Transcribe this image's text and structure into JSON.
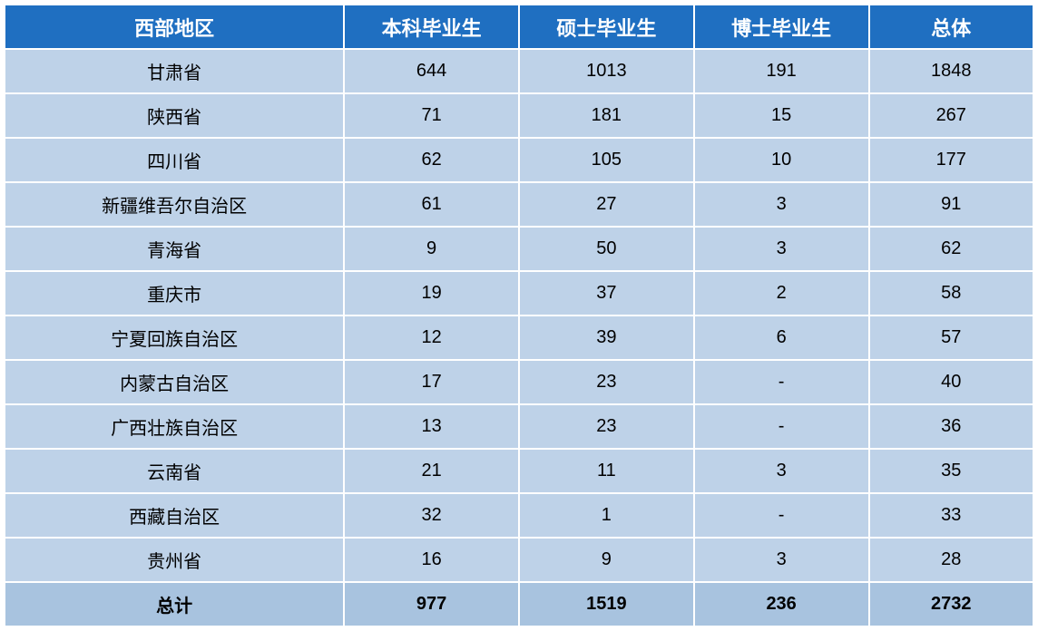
{
  "table": {
    "type": "table",
    "header_bg": "#1f6fc1",
    "header_fg": "#ffffff",
    "row_bg": "#bed2e8",
    "total_row_bg": "#a8c3df",
    "border_color": "#ffffff",
    "font_family": "Microsoft YaHei",
    "header_fontsize": 22,
    "cell_fontsize": 20,
    "columns": [
      "西部地区",
      "本科毕业生",
      "硕士毕业生",
      "博士毕业生",
      "总体"
    ],
    "column_widths_pct": [
      33,
      17,
      17,
      17,
      16
    ],
    "rows": [
      [
        "甘肃省",
        "644",
        "1013",
        "191",
        "1848"
      ],
      [
        "陕西省",
        "71",
        "181",
        "15",
        "267"
      ],
      [
        "四川省",
        "62",
        "105",
        "10",
        "177"
      ],
      [
        "新疆维吾尔自治区",
        "61",
        "27",
        "3",
        "91"
      ],
      [
        "青海省",
        "9",
        "50",
        "3",
        "62"
      ],
      [
        "重庆市",
        "19",
        "37",
        "2",
        "58"
      ],
      [
        "宁夏回族自治区",
        "12",
        "39",
        "6",
        "57"
      ],
      [
        "内蒙古自治区",
        "17",
        "23",
        "-",
        "40"
      ],
      [
        "广西壮族自治区",
        "13",
        "23",
        "-",
        "36"
      ],
      [
        "云南省",
        "21",
        "11",
        "3",
        "35"
      ],
      [
        "西藏自治区",
        "32",
        "1",
        "-",
        "33"
      ],
      [
        "贵州省",
        "16",
        "9",
        "3",
        "28"
      ]
    ],
    "total_row": [
      "总计",
      "977",
      "1519",
      "236",
      "2732"
    ]
  }
}
